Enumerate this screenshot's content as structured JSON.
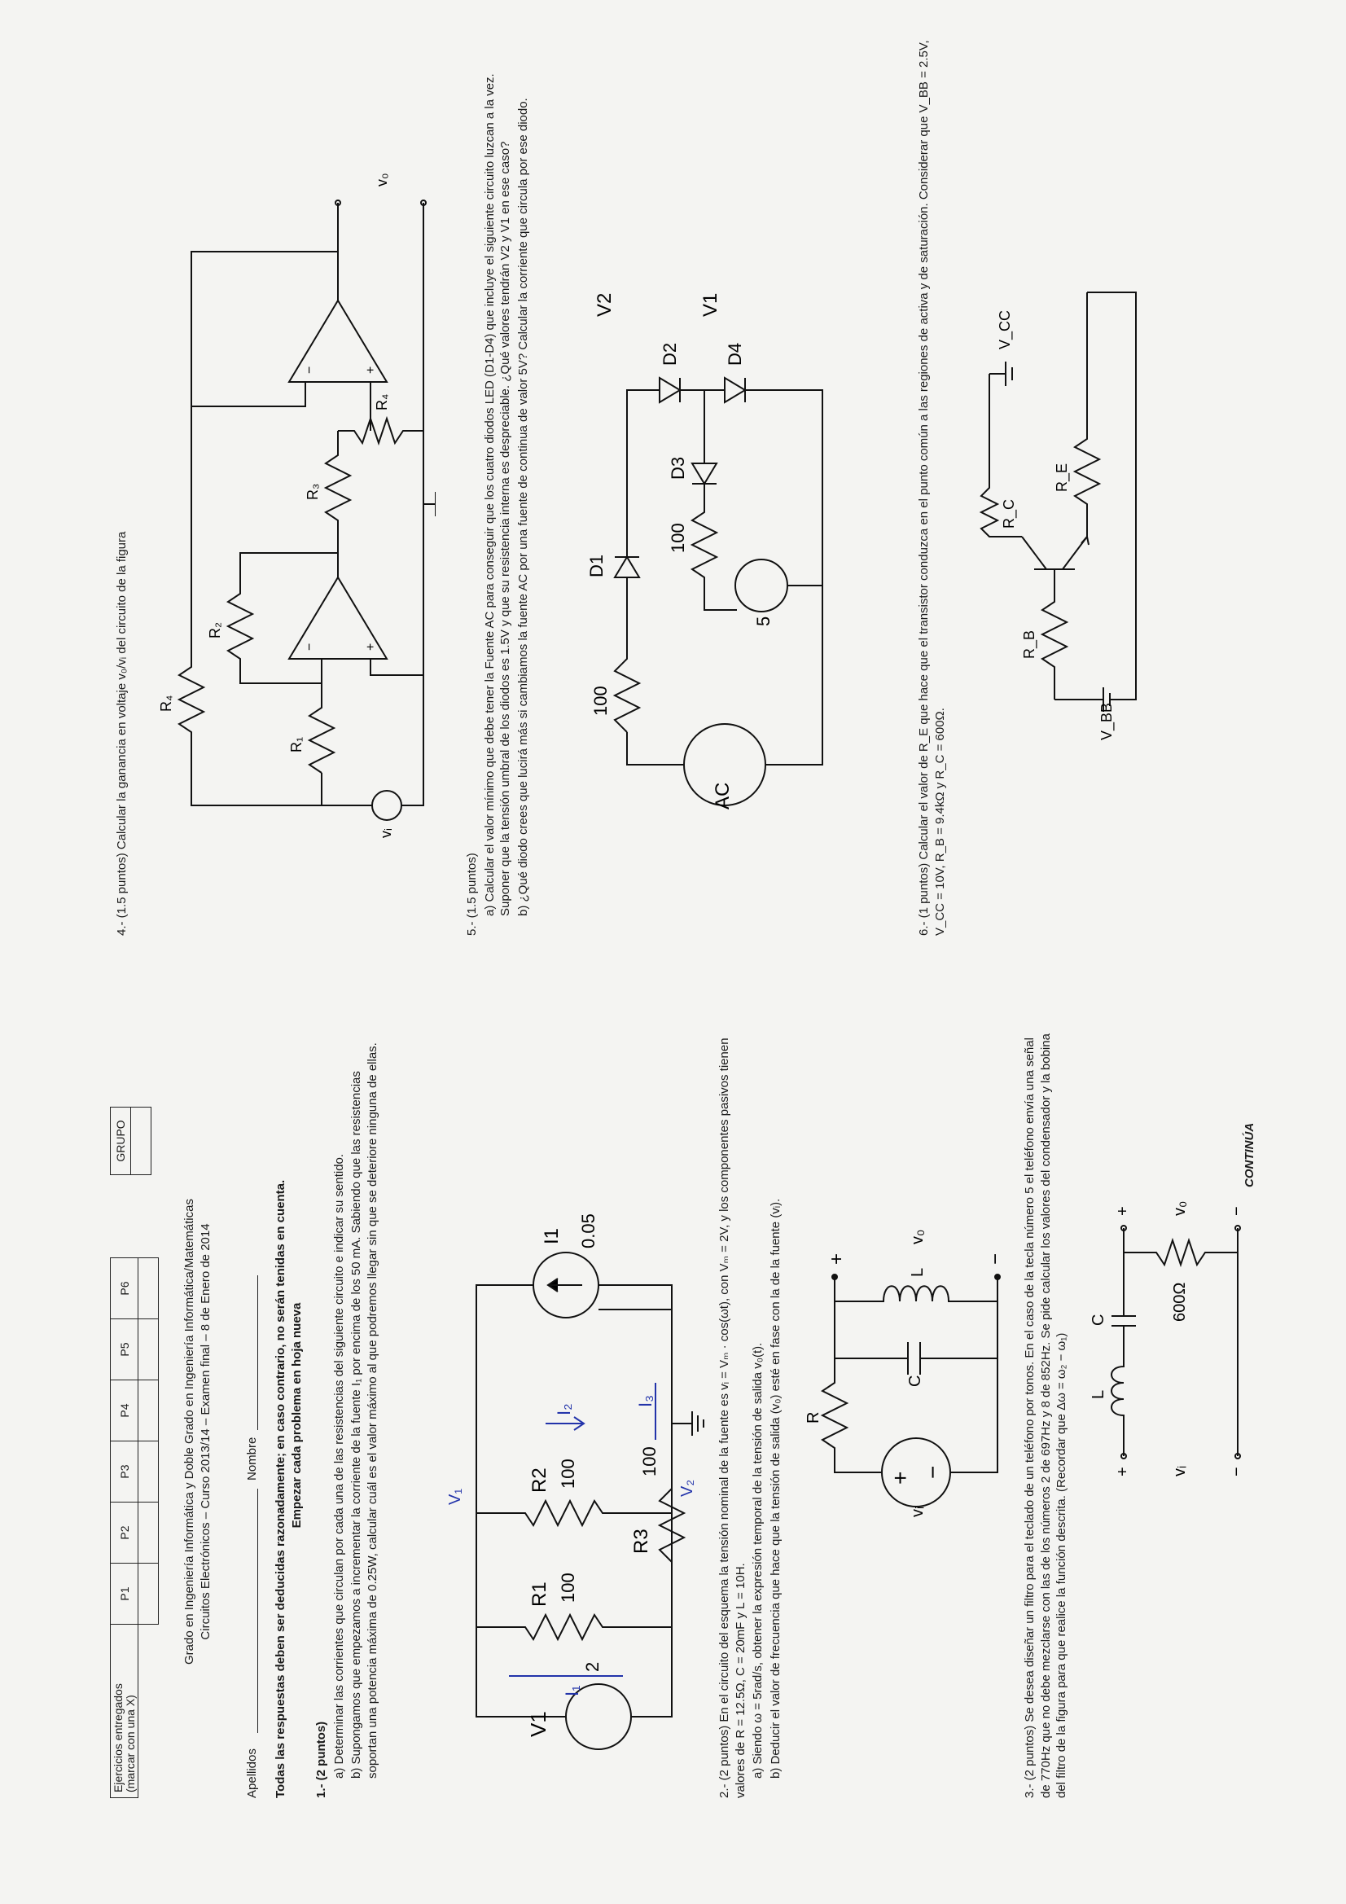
{
  "header": {
    "entregados_label": "Ejercicios entregados",
    "entregados_sub": "(marcar con una X)",
    "cols": [
      "P1",
      "P2",
      "P3",
      "P4",
      "P5",
      "P6"
    ],
    "grupo": "GRUPO"
  },
  "titles": {
    "line1": "Grado en Ingeniería Informática y Doble Grado en Ingeniería Informática/Matemáticas",
    "line2": "Circuitos Electrónicos – Curso 2013/14 – Examen final – 8 de Enero de 2014"
  },
  "fields": {
    "apellidos": "Apellidos",
    "nombre": "Nombre"
  },
  "instructions": {
    "line1": "Todas las respuestas deben ser deducidas razonadamente; en caso contrario, no serán tenidas en cuenta.",
    "line2": "Empezar cada problema en hoja nueva"
  },
  "p1": {
    "title": "1.- (2 puntos)",
    "a": "a)   Determinar las corrientes que circulan por cada una de las resistencias del siguiente circuito e indicar su sentido.",
    "b": "b)   Supongamos que empezamos a incrementar la corriente de la fuente I₁ por encima de los 50 mA. Sabiendo que las resistencias soportan una potencia máxima de 0.25W, calcular cuál es el valor máximo al que podremos llegar sin que se deteriore ninguna de ellas.",
    "labels": {
      "v1": "V1",
      "two": "2",
      "r1": "R1",
      "r1v": "100",
      "r3": "R3",
      "r3v": "100",
      "r2": "R2",
      "r2v": "100",
      "i1": "I1",
      "i1v": "0.05"
    },
    "handwritten": {
      "i1": "I₁",
      "i2": "I₂",
      "i3": "I₃",
      "v1": "V₁",
      "v2": "V₂"
    }
  },
  "p2": {
    "intro": "2.- (2 puntos) En el circuito del esquema la tensión nominal de la fuente es vᵢ = Vₘ · cos(ωt), con Vₘ = 2V, y los componentes pasivos tienen valores de R = 12.5Ω, C = 20mF y L = 10H.",
    "a": "a)   Siendo ω = 5rad/s, obtener la expresión temporal de la tensión de salida v₀(t).",
    "b": "b)   Deducir el valor de frecuencia que hace que la tensión de salida (v₀) esté en fase con la de la fuente (vᵢ).",
    "labels": {
      "r": "R",
      "c": "C",
      "l": "L",
      "vi": "vᵢ",
      "vo": "v₀",
      "plus": "+",
      "minus": "−"
    }
  },
  "p3": {
    "text": "3.- (2 puntos) Se desea diseñar un filtro para el teclado de un teléfono por tonos. En el caso de la tecla número 5 el teléfono envía una señal de 770Hz que no debe mezclarse con las de los números 2 de 697Hz y 8 de 852Hz. Se pide calcular los valores del condensador y la bobina del filtro de la figura para que realice la función descrita. (Recordar que Δω = ω₂ − ω₁)",
    "labels": {
      "l": "L",
      "c": "C",
      "r": "600Ω",
      "vi": "vᵢ",
      "vo": "v₀",
      "plus": "+",
      "minus": "−"
    }
  },
  "continua": "CONTINÚA",
  "p4": {
    "text": "4.- (1.5 puntos) Calcular la ganancia en voltaje v₀/vᵢ del circuito de la figura",
    "labels": {
      "r1": "R₁",
      "r2": "R₂",
      "r3": "R₃",
      "r4": "R₄",
      "r4b": "R₄",
      "vi": "vᵢ",
      "vo": "v₀"
    }
  },
  "p5": {
    "title": "5.- (1.5 puntos)",
    "a": "a)   Calcular el valor mínimo que debe tener la Fuente AC para conseguir que los cuatro diodos LED (D1-D4) que incluye el siguiente circuito luzcan a la vez. Suponer que la tensión umbral de los diodos es 1.5V y que su resistencia interna es despreciable. ¿Qué valores tendrán V2 y V1 en ese caso?",
    "b": "b)   ¿Qué diodo crees que lucirá más si cambiamos la fuente AC por una fuente de continua de valor 5V? Calcular la corriente que circula por ese diodo.",
    "labels": {
      "ac": "AC",
      "r100a": "100",
      "r100b": "100",
      "five": "5",
      "d1": "D1",
      "d2": "D2",
      "d3": "D3",
      "d4": "D4",
      "v2": "V2",
      "v1": "V1"
    }
  },
  "p6": {
    "text": "6.- (1 puntos) Calcular el valor de R_E que hace que el transistor conduzca en el punto común a las regiones de activa y de saturación. Considerar que V_BB = 2.5V, V_CC = 10V, R_B = 9.4kΩ y R_C = 600Ω.",
    "labels": {
      "rb": "R_B",
      "rc": "R_C",
      "re": "R_E",
      "vbb": "V_BB",
      "vcc": "V_CC"
    }
  }
}
